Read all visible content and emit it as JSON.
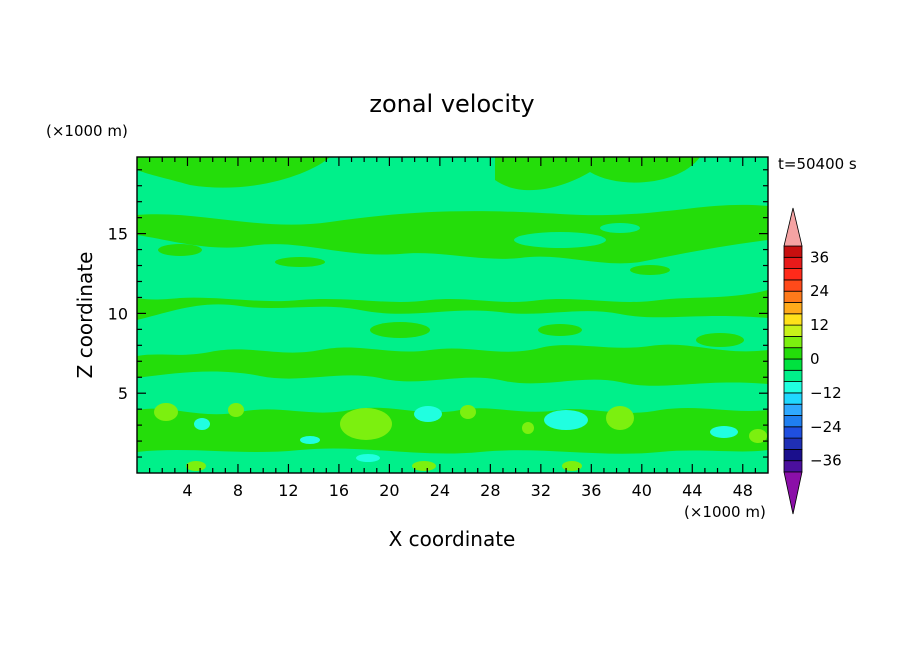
{
  "chart_data": {
    "type": "heatmap",
    "title": "zonal velocity",
    "xlabel": "X coordinate",
    "ylabel": "Z coordinate",
    "x_unit": "(×1000 m)",
    "y_unit": "(×1000 m)",
    "time_label": "t=50400 s",
    "xlim": [
      0,
      50
    ],
    "ylim": [
      0,
      19.8
    ],
    "x_ticks": [
      4,
      8,
      12,
      16,
      20,
      24,
      28,
      32,
      36,
      40,
      44,
      48
    ],
    "y_ticks": [
      5,
      10,
      15
    ],
    "colorbar": {
      "tick_labels": [
        "36",
        "24",
        "12",
        "0",
        "−12",
        "−24",
        "−36"
      ],
      "tick_values": [
        36,
        24,
        12,
        0,
        -12,
        -24,
        -36
      ],
      "levels": [
        -40,
        -36,
        -32,
        -28,
        -24,
        -20,
        -16,
        -12,
        -8,
        -4,
        0,
        4,
        8,
        12,
        16,
        20,
        24,
        28,
        32,
        36,
        40
      ],
      "colors": [
        "#4b0f9e",
        "#1a0f8c",
        "#1f2fb5",
        "#1f4fe0",
        "#1f7ff0",
        "#2fa9ff",
        "#20d8ff",
        "#20ffe0",
        "#00f08a",
        "#00e23f",
        "#24dd0a",
        "#7cf00f",
        "#c8f21a",
        "#ffe11a",
        "#ffaa1a",
        "#ff7a1a",
        "#ff4a1a",
        "#ff2a1a",
        "#e81a1a",
        "#c80f0f"
      ],
      "under_color": "#8b0fa8",
      "over_color": "#f5a3a3"
    },
    "colors": {
      "near_zero_positive": "#24dd0a",
      "near_zero_negative": "#00f08a",
      "weak_positive": "#7cf00f",
      "weak_negative": "#20ffe0"
    }
  }
}
